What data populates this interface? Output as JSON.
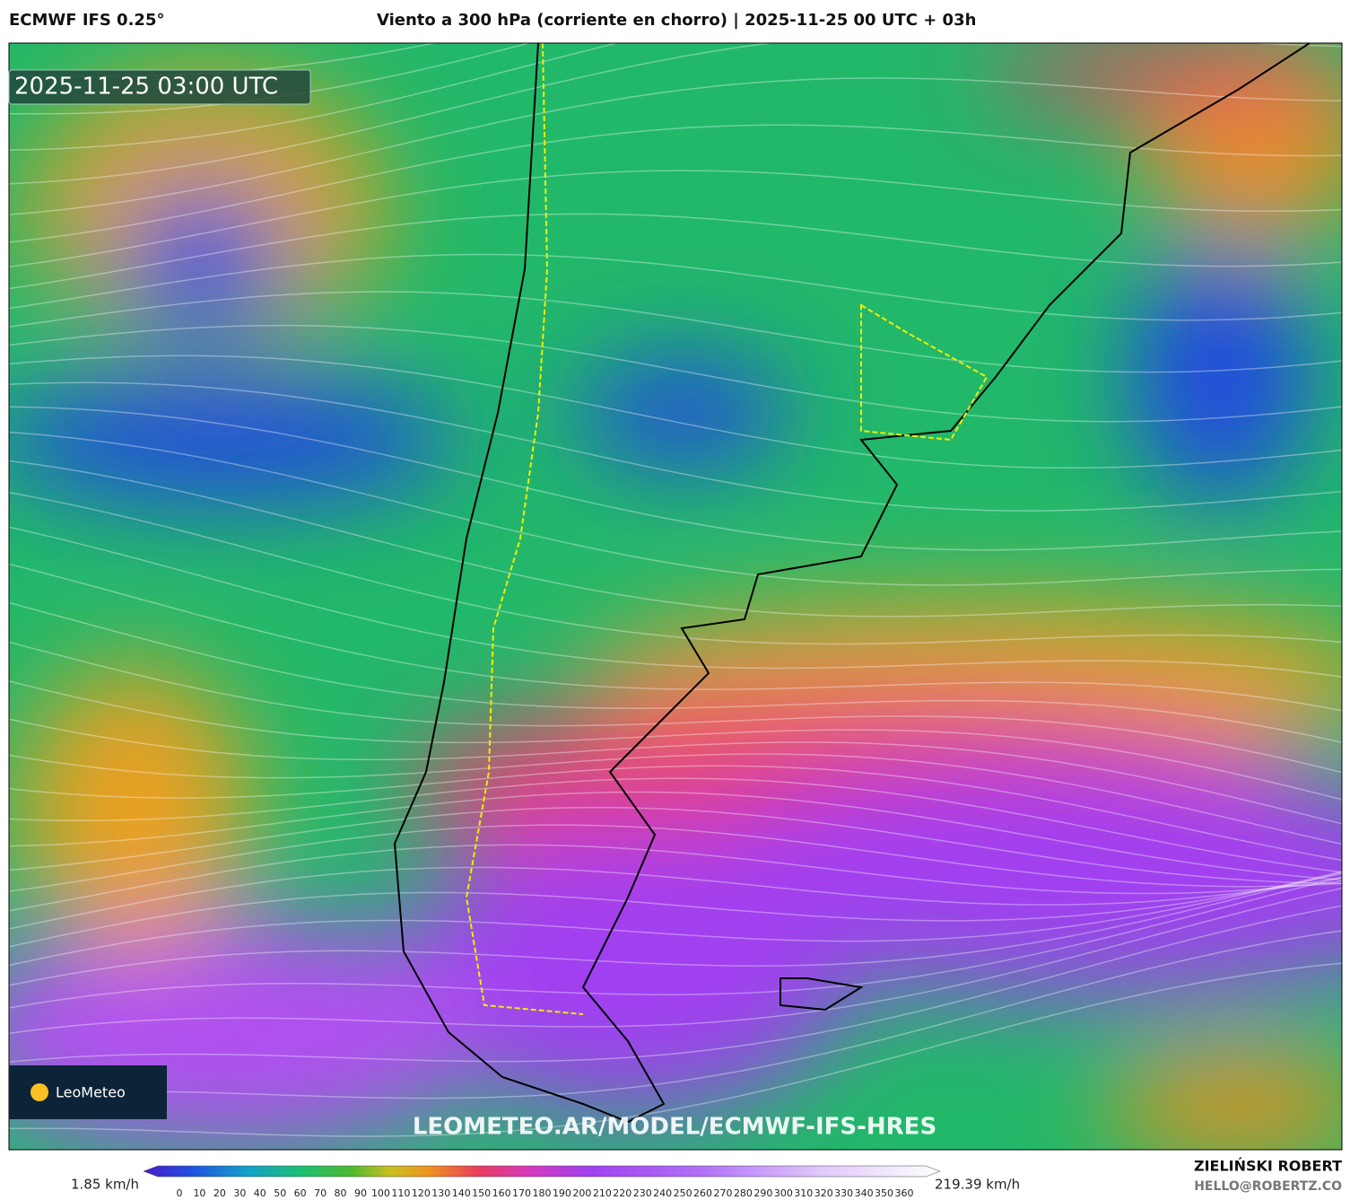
{
  "header": {
    "model": "ECMWF IFS 0.25°",
    "title": "Viento a 300 hPa (corriente en chorro) | 2025-11-25 00 UTC + 03h"
  },
  "map": {
    "timestamp": "2025-11-25 03:00 UTC",
    "logo": "LeoMeteo",
    "watermark": "LEOMETEO.AR/MODEL/ECMWF-IFS-HRES"
  },
  "legend": {
    "min_label": "1.85 km/h",
    "max_label": "219.39 km/h",
    "ticks": [
      0,
      10,
      20,
      30,
      40,
      50,
      60,
      70,
      80,
      90,
      100,
      110,
      120,
      130,
      140,
      150,
      160,
      170,
      180,
      190,
      200,
      210,
      220,
      230,
      240,
      250,
      260,
      270,
      280,
      290,
      300,
      310,
      320,
      330,
      340,
      350,
      360
    ]
  },
  "footer": {
    "author": "ZIELIŃSKI ROBERT",
    "contact": "HELLO@ROBERTZ.CO"
  }
}
